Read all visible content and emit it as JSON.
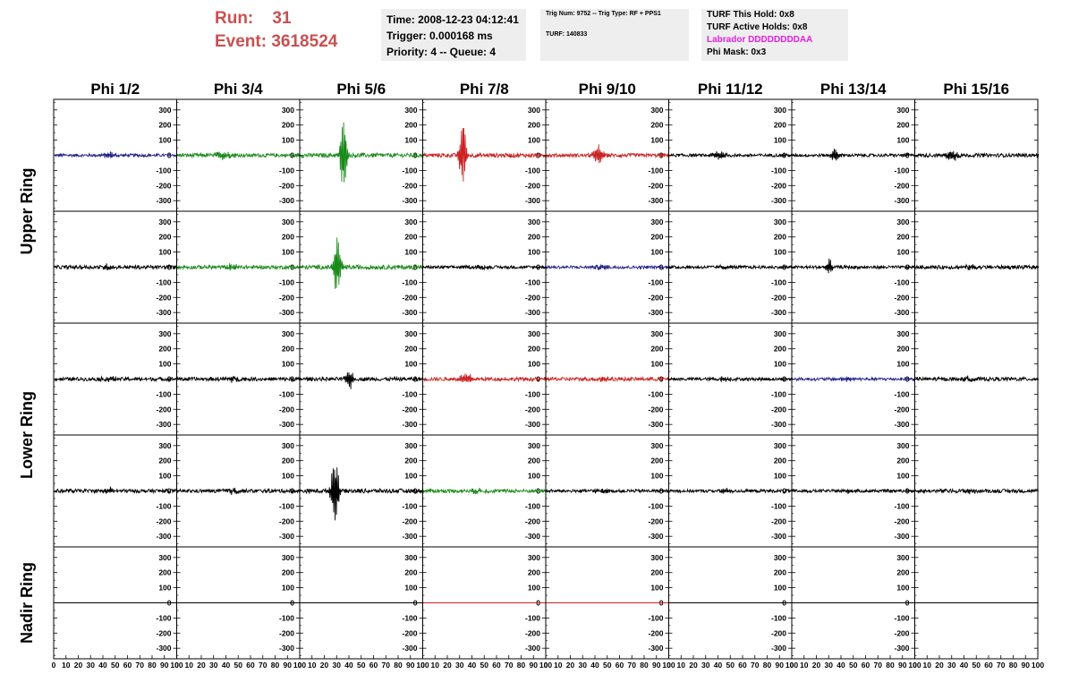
{
  "header": {
    "run_label": "Run:",
    "run_value": "31",
    "event_label": "Event:",
    "event_value": "3618524",
    "time": "Time: 2008-12-23 04:12:41",
    "trigger": "Trigger: 0.000168 ms",
    "priority": "Priority: 4 -- Queue: 4",
    "trig_num": "Trig Num: 9752 -- Trig Type: RF + PPS1",
    "turf_id": "TURF: 140833",
    "turf_hold": "TURF This Hold: 0x8",
    "turf_active": "TURF Active Holds: 0x8",
    "labrador": "Labrador DDDDDDDDAA",
    "phi_mask": "Phi Mask: 0x3"
  },
  "colors": {
    "run_text": "#c95050",
    "labrador_text": "#e020e0",
    "box_bg": "#eeeeee",
    "black": "#000000",
    "green": "#1a8a1a",
    "red": "#cc2222",
    "blue": "#22228a"
  },
  "chart_data": {
    "type": "line",
    "columns": [
      "Phi 1/2",
      "Phi 3/4",
      "Phi 5/6",
      "Phi 7/8",
      "Phi 9/10",
      "Phi 11/12",
      "Phi 13/14",
      "Phi 15/16"
    ],
    "ring_labels": [
      "Upper Ring",
      "Lower Ring",
      "Nadir Ring"
    ],
    "rows": 5,
    "ylim": [
      -370,
      370
    ],
    "yticks": [
      300,
      200,
      100,
      0,
      -100,
      -200,
      -300
    ],
    "ytick_labels": [
      "300",
      "200",
      "100",
      "0",
      "-100",
      "-200",
      "-300"
    ],
    "xlim": [
      0,
      100
    ],
    "xticks": [
      0,
      10,
      20,
      30,
      40,
      50,
      60,
      70,
      80,
      90,
      100
    ],
    "xtick_labels": [
      "0",
      "10",
      "20",
      "30",
      "40",
      "50",
      "60",
      "70",
      "80",
      "90",
      "100"
    ],
    "traces": [
      [
        {
          "color": "blue",
          "noise": 10,
          "burst_center": 45,
          "burst_amp": 20,
          "burst_width": 6
        },
        {
          "color": "green",
          "noise": 12,
          "burst_center": 38,
          "burst_amp": 28,
          "burst_width": 8
        },
        {
          "color": "green",
          "noise": 14,
          "burst_center": 35,
          "burst_amp": 330,
          "burst_width": 2.5
        },
        {
          "color": "red",
          "noise": 14,
          "burst_center": 32,
          "burst_amp": 300,
          "burst_width": 2.5
        },
        {
          "color": "red",
          "noise": 12,
          "burst_center": 42,
          "burst_amp": 70,
          "burst_width": 4
        },
        {
          "color": "black",
          "noise": 10,
          "burst_center": 40,
          "burst_amp": 25,
          "burst_width": 6
        },
        {
          "color": "black",
          "noise": 10,
          "burst_center": 35,
          "burst_amp": 40,
          "burst_width": 4
        },
        {
          "color": "black",
          "noise": 12,
          "burst_center": 30,
          "burst_amp": 40,
          "burst_width": 5
        }
      ],
      [
        {
          "color": "black",
          "noise": 12,
          "burst_center": 45,
          "burst_amp": 20,
          "burst_width": 6
        },
        {
          "color": "green",
          "noise": 12,
          "burst_center": 45,
          "burst_amp": 20,
          "burst_width": 6
        },
        {
          "color": "green",
          "noise": 14,
          "burst_center": 30,
          "burst_amp": 220,
          "burst_width": 3
        },
        {
          "color": "black",
          "noise": 10,
          "burst_center": 45,
          "burst_amp": 15,
          "burst_width": 6
        },
        {
          "color": "blue",
          "noise": 10,
          "burst_center": 45,
          "burst_amp": 15,
          "burst_width": 6
        },
        {
          "color": "black",
          "noise": 10,
          "burst_center": 45,
          "burst_amp": 15,
          "burst_width": 6
        },
        {
          "color": "black",
          "noise": 10,
          "burst_center": 30,
          "burst_amp": 60,
          "burst_width": 2.5
        },
        {
          "color": "black",
          "noise": 12,
          "burst_center": 45,
          "burst_amp": 15,
          "burst_width": 6
        }
      ],
      [
        {
          "color": "black",
          "noise": 12,
          "burst_center": 45,
          "burst_amp": 20,
          "burst_width": 6
        },
        {
          "color": "black",
          "noise": 12,
          "burst_center": 45,
          "burst_amp": 20,
          "burst_width": 6
        },
        {
          "color": "black",
          "noise": 12,
          "burst_center": 40,
          "burst_amp": 70,
          "burst_width": 3
        },
        {
          "color": "red",
          "noise": 12,
          "burst_center": 35,
          "burst_amp": 45,
          "burst_width": 5
        },
        {
          "color": "red",
          "noise": 12,
          "burst_center": 45,
          "burst_amp": 15,
          "burst_width": 6
        },
        {
          "color": "black",
          "noise": 10,
          "burst_center": 45,
          "burst_amp": 15,
          "burst_width": 6
        },
        {
          "color": "blue",
          "noise": 10,
          "burst_center": 45,
          "burst_amp": 15,
          "burst_width": 6
        },
        {
          "color": "black",
          "noise": 12,
          "burst_center": 45,
          "burst_amp": 15,
          "burst_width": 6
        }
      ],
      [
        {
          "color": "black",
          "noise": 12,
          "burst_center": 45,
          "burst_amp": 20,
          "burst_width": 6
        },
        {
          "color": "black",
          "noise": 12,
          "burst_center": 45,
          "burst_amp": 20,
          "burst_width": 6
        },
        {
          "color": "black",
          "noise": 14,
          "burst_center": 28,
          "burst_amp": 260,
          "burst_width": 3
        },
        {
          "color": "green",
          "noise": 12,
          "burst_center": 45,
          "burst_amp": 15,
          "burst_width": 6
        },
        {
          "color": "black",
          "noise": 10,
          "burst_center": 45,
          "burst_amp": 15,
          "burst_width": 6
        },
        {
          "color": "black",
          "noise": 10,
          "burst_center": 45,
          "burst_amp": 15,
          "burst_width": 6
        },
        {
          "color": "black",
          "noise": 10,
          "burst_center": 45,
          "burst_amp": 15,
          "burst_width": 6
        },
        {
          "color": "black",
          "noise": 12,
          "burst_center": 45,
          "burst_amp": 15,
          "burst_width": 6
        }
      ],
      [
        {
          "color": "black",
          "noise": 0,
          "burst_center": 0,
          "burst_amp": 0,
          "burst_width": 1
        },
        {
          "color": "black",
          "noise": 0,
          "burst_center": 0,
          "burst_amp": 0,
          "burst_width": 1
        },
        {
          "color": "black",
          "noise": 0,
          "burst_center": 0,
          "burst_amp": 0,
          "burst_width": 1
        },
        {
          "color": "red",
          "noise": 0,
          "burst_center": 0,
          "burst_amp": 0,
          "burst_width": 1
        },
        {
          "color": "red",
          "noise": 0,
          "burst_center": 0,
          "burst_amp": 0,
          "burst_width": 1
        },
        {
          "color": "black",
          "noise": 0,
          "burst_center": 0,
          "burst_amp": 0,
          "burst_width": 1
        },
        {
          "color": "black",
          "noise": 0,
          "burst_center": 0,
          "burst_amp": 0,
          "burst_width": 1
        },
        {
          "color": "black",
          "noise": 0,
          "burst_center": 0,
          "burst_amp": 0,
          "burst_width": 1
        }
      ]
    ]
  }
}
